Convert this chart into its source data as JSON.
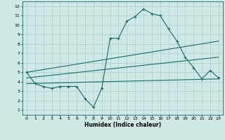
{
  "title": "",
  "xlabel": "Humidex (Indice chaleur)",
  "ylabel": "",
  "background_color": "#cde8e5",
  "grid_color": "#aacfcc",
  "line_color": "#1a6b5e",
  "xlim": [
    -0.5,
    23.5
  ],
  "ylim": [
    0.5,
    12.5
  ],
  "xticks": [
    0,
    1,
    2,
    3,
    4,
    5,
    6,
    7,
    8,
    9,
    10,
    11,
    12,
    13,
    14,
    15,
    16,
    17,
    18,
    19,
    20,
    21,
    22,
    23
  ],
  "yticks": [
    1,
    2,
    3,
    4,
    5,
    6,
    7,
    8,
    9,
    10,
    11,
    12
  ],
  "line1_x": [
    0,
    1,
    2,
    3,
    4,
    5,
    6,
    7,
    8,
    9,
    10,
    11,
    12,
    13,
    14,
    15,
    16,
    17,
    18,
    19,
    20,
    21,
    22,
    23
  ],
  "line1_y": [
    5.0,
    3.8,
    3.5,
    3.3,
    3.5,
    3.5,
    3.5,
    2.2,
    1.3,
    3.3,
    8.6,
    8.6,
    10.4,
    10.9,
    11.7,
    11.2,
    11.0,
    9.6,
    8.3,
    6.6,
    5.5,
    4.3,
    5.2,
    4.4
  ],
  "line2_x": [
    0,
    23
  ],
  "line2_y": [
    5.0,
    8.3
  ],
  "line3_x": [
    0,
    23
  ],
  "line3_y": [
    4.4,
    6.6
  ],
  "line4_x": [
    0,
    23
  ],
  "line4_y": [
    3.8,
    4.3
  ]
}
